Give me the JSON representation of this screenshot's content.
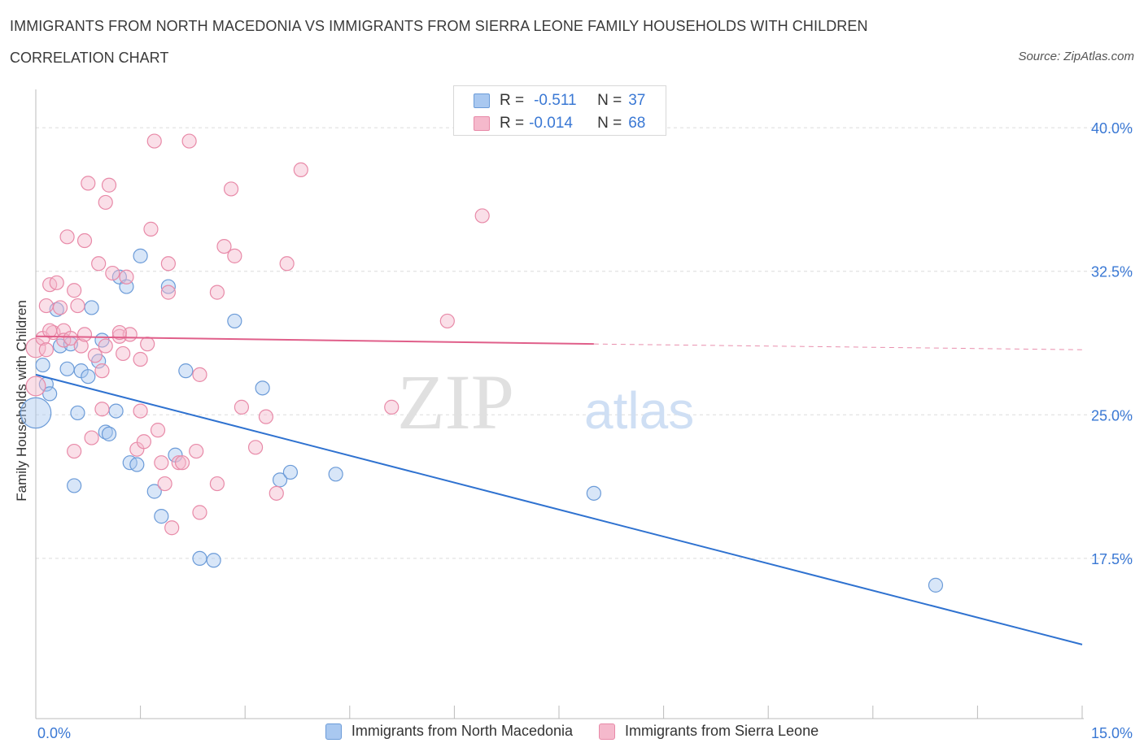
{
  "header": {
    "title": "IMMIGRANTS FROM NORTH MACEDONIA VS IMMIGRANTS FROM SIERRA LEONE FAMILY HOUSEHOLDS WITH CHILDREN",
    "subtitle": "CORRELATION CHART",
    "source": "Source: ZipAtlas.com"
  },
  "watermark": {
    "zip": "ZIP",
    "atlas": "atlas"
  },
  "stats_legend": {
    "rows": [
      {
        "r_key": "R =",
        "r_value": "-0.511",
        "n_key": "N =",
        "n_value": "37",
        "color": "#a9c8f0"
      },
      {
        "r_key": "R =",
        "r_value": "-0.014",
        "n_key": "N =",
        "n_value": "68",
        "color": "#f5b9cc"
      }
    ]
  },
  "chart_data": {
    "type": "scatter",
    "title": "IMMIGRANTS FROM NORTH MACEDONIA VS IMMIGRANTS FROM SIERRA LEONE FAMILY HOUSEHOLDS WITH CHILDREN",
    "subtitle": "CORRELATION CHART",
    "xlabel": "",
    "ylabel": "Family Households with Children",
    "xlim": [
      0,
      15
    ],
    "ylim": [
      9.3,
      42
    ],
    "x_tick_labels": [
      "0.0%",
      "15.0%"
    ],
    "y_ticks": [
      17.5,
      25.0,
      32.5,
      40.0
    ],
    "y_tick_labels": [
      "17.5%",
      "25.0%",
      "32.5%",
      "40.0%"
    ],
    "grid": true,
    "legend_position": "bottom",
    "series": [
      {
        "name": "Immigrants from North Macedonia",
        "color": "#a9c8f0",
        "stroke": "#6b9bd8",
        "line_color": "#2f72d0",
        "R": -0.511,
        "N": 37,
        "trend": {
          "x": [
            0,
            15
          ],
          "y": [
            27.1,
            13.0
          ]
        },
        "points": [
          [
            0.0,
            25.1,
            2.2
          ],
          [
            0.1,
            27.6,
            1
          ],
          [
            0.15,
            26.6,
            1
          ],
          [
            0.2,
            26.1,
            1
          ],
          [
            0.3,
            30.5,
            1
          ],
          [
            0.35,
            28.6,
            1
          ],
          [
            0.45,
            27.4,
            1
          ],
          [
            0.5,
            28.7,
            1
          ],
          [
            0.6,
            25.1,
            1
          ],
          [
            0.65,
            27.3,
            1
          ],
          [
            0.75,
            27.0,
            1
          ],
          [
            0.8,
            30.6,
            1
          ],
          [
            0.9,
            27.8,
            1
          ],
          [
            0.95,
            28.9,
            1
          ],
          [
            1.0,
            24.1,
            1
          ],
          [
            1.05,
            24.0,
            1
          ],
          [
            1.15,
            25.2,
            1
          ],
          [
            1.2,
            32.2,
            1
          ],
          [
            1.3,
            31.7,
            1
          ],
          [
            1.35,
            22.5,
            1
          ],
          [
            1.45,
            22.4,
            1
          ],
          [
            1.5,
            33.3,
            1
          ],
          [
            1.7,
            21.0,
            1
          ],
          [
            1.8,
            19.7,
            1
          ],
          [
            1.9,
            31.7,
            1
          ],
          [
            2.0,
            22.9,
            1
          ],
          [
            2.15,
            27.3,
            1
          ],
          [
            2.35,
            17.5,
            1
          ],
          [
            2.55,
            17.4,
            1
          ],
          [
            0.55,
            21.3,
            1
          ],
          [
            2.85,
            29.9,
            1
          ],
          [
            3.25,
            26.4,
            1
          ],
          [
            3.5,
            21.6,
            1
          ],
          [
            3.65,
            22.0,
            1
          ],
          [
            4.3,
            21.9,
            1
          ],
          [
            8.0,
            20.9,
            1
          ],
          [
            12.9,
            16.1,
            1
          ]
        ]
      },
      {
        "name": "Immigrants from Sierra Leone",
        "color": "#f5b9cc",
        "stroke": "#e88aa8",
        "line_color": "#e05f8a",
        "R": -0.014,
        "N": 68,
        "trend": {
          "x": [
            0,
            8.0,
            15
          ],
          "y": [
            29.1,
            28.7,
            28.4
          ]
        },
        "points": [
          [
            0.0,
            28.5,
            1.4
          ],
          [
            0.0,
            26.5,
            1.4
          ],
          [
            0.1,
            29.0,
            1
          ],
          [
            0.15,
            30.7,
            1
          ],
          [
            0.2,
            31.8,
            1
          ],
          [
            0.25,
            29.3,
            1
          ],
          [
            0.3,
            31.9,
            1
          ],
          [
            0.35,
            30.6,
            1
          ],
          [
            0.4,
            29.4,
            1
          ],
          [
            0.4,
            28.9,
            1
          ],
          [
            0.45,
            34.3,
            1
          ],
          [
            0.5,
            29.0,
            1
          ],
          [
            0.55,
            31.5,
            1
          ],
          [
            0.55,
            23.1,
            1
          ],
          [
            0.6,
            30.7,
            1
          ],
          [
            0.65,
            28.6,
            1
          ],
          [
            0.7,
            29.2,
            1
          ],
          [
            0.7,
            34.1,
            1
          ],
          [
            0.75,
            37.1,
            1
          ],
          [
            0.8,
            23.8,
            1
          ],
          [
            0.85,
            28.1,
            1
          ],
          [
            0.9,
            32.9,
            1
          ],
          [
            0.95,
            25.3,
            1
          ],
          [
            0.95,
            27.3,
            1
          ],
          [
            1.0,
            36.1,
            1
          ],
          [
            1.0,
            28.6,
            1
          ],
          [
            1.05,
            37.0,
            1
          ],
          [
            1.1,
            32.4,
            1
          ],
          [
            1.2,
            29.1,
            1
          ],
          [
            1.25,
            28.2,
            1
          ],
          [
            1.3,
            32.2,
            1
          ],
          [
            1.35,
            29.2,
            1
          ],
          [
            1.45,
            23.2,
            1
          ],
          [
            1.5,
            25.2,
            1
          ],
          [
            1.5,
            27.9,
            1
          ],
          [
            1.55,
            23.6,
            1
          ],
          [
            1.6,
            28.7,
            1
          ],
          [
            1.65,
            34.7,
            1
          ],
          [
            1.7,
            39.3,
            1
          ],
          [
            1.75,
            24.2,
            1
          ],
          [
            1.8,
            22.5,
            1
          ],
          [
            1.85,
            21.4,
            1
          ],
          [
            1.9,
            32.9,
            1
          ],
          [
            1.9,
            31.4,
            1
          ],
          [
            1.95,
            19.1,
            1
          ],
          [
            2.05,
            22.5,
            1
          ],
          [
            2.1,
            22.5,
            1
          ],
          [
            2.2,
            39.3,
            1
          ],
          [
            2.3,
            23.1,
            1
          ],
          [
            2.35,
            19.9,
            1
          ],
          [
            2.35,
            27.1,
            1
          ],
          [
            2.6,
            21.4,
            1
          ],
          [
            2.6,
            31.4,
            1
          ],
          [
            2.7,
            33.8,
            1
          ],
          [
            2.8,
            36.8,
            1
          ],
          [
            2.85,
            33.3,
            1
          ],
          [
            2.95,
            25.4,
            1
          ],
          [
            3.15,
            23.3,
            1
          ],
          [
            3.3,
            24.9,
            1
          ],
          [
            3.45,
            20.9,
            1
          ],
          [
            3.6,
            32.9,
            1
          ],
          [
            3.8,
            37.8,
            1
          ],
          [
            5.1,
            25.4,
            1
          ],
          [
            5.9,
            29.9,
            1
          ],
          [
            6.4,
            35.4,
            1
          ],
          [
            0.15,
            28.4,
            1
          ],
          [
            0.2,
            29.4,
            1
          ],
          [
            1.2,
            29.3,
            1
          ]
        ]
      }
    ]
  },
  "bottom_legend": {
    "items": [
      {
        "label": "Immigrants from North Macedonia",
        "color": "#a9c8f0",
        "stroke": "#6b9bd8"
      },
      {
        "label": "Immigrants from Sierra Leone",
        "color": "#f5b9cc",
        "stroke": "#e88aa8"
      }
    ]
  }
}
